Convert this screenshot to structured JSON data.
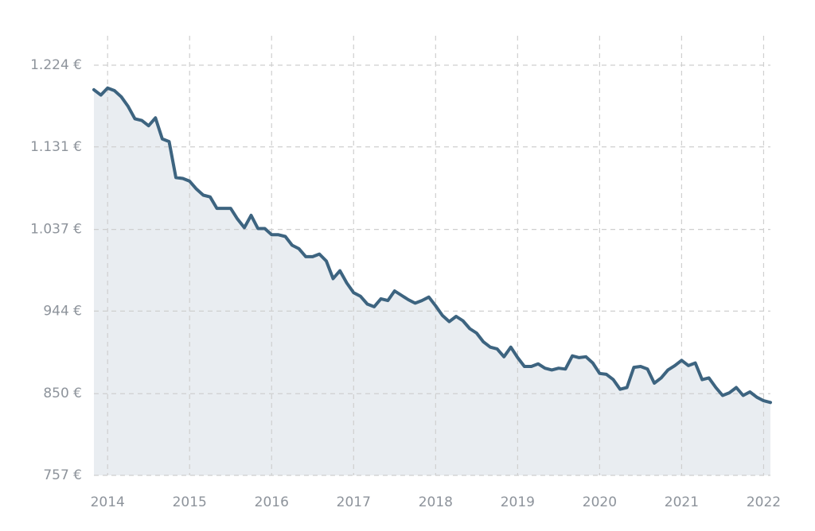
{
  "chart_data": {
    "type": "area",
    "x": [
      2013.833,
      2013.917,
      2014,
      2014.083,
      2014.167,
      2014.25,
      2014.333,
      2014.417,
      2014.5,
      2014.583,
      2014.667,
      2014.75,
      2014.833,
      2014.917,
      2015,
      2015.083,
      2015.167,
      2015.25,
      2015.333,
      2015.417,
      2015.5,
      2015.583,
      2015.667,
      2015.75,
      2015.833,
      2015.917,
      2016,
      2016.083,
      2016.167,
      2016.25,
      2016.333,
      2016.417,
      2016.5,
      2016.583,
      2016.667,
      2016.75,
      2016.833,
      2016.917,
      2017,
      2017.083,
      2017.167,
      2017.25,
      2017.333,
      2017.417,
      2017.5,
      2017.583,
      2017.667,
      2017.75,
      2017.833,
      2017.917,
      2018,
      2018.083,
      2018.167,
      2018.25,
      2018.333,
      2018.417,
      2018.5,
      2018.583,
      2018.667,
      2018.75,
      2018.833,
      2018.917,
      2019,
      2019.083,
      2019.167,
      2019.25,
      2019.333,
      2019.417,
      2019.5,
      2019.583,
      2019.667,
      2019.75,
      2019.833,
      2019.917,
      2020,
      2020.083,
      2020.167,
      2020.25,
      2020.333,
      2020.417,
      2020.5,
      2020.583,
      2020.667,
      2020.75,
      2020.833,
      2020.917,
      2021,
      2021.083,
      2021.167,
      2021.25,
      2021.333,
      2021.417,
      2021.5,
      2021.583,
      2021.667,
      2021.75,
      2021.833,
      2021.917,
      2022,
      2022.083
    ],
    "values": [
      1196,
      1190,
      1198,
      1195,
      1188,
      1177,
      1163,
      1161,
      1155,
      1164,
      1140,
      1137,
      1096,
      1095,
      1092,
      1083,
      1076,
      1074,
      1061,
      1061,
      1061,
      1049,
      1039,
      1053,
      1038,
      1038,
      1031,
      1031,
      1029,
      1019,
      1015,
      1006,
      1006,
      1009,
      1001,
      981,
      990,
      976,
      965,
      961,
      952,
      949,
      958,
      956,
      967,
      962,
      957,
      953,
      956,
      960,
      950,
      939,
      932,
      938,
      933,
      924,
      919,
      909,
      903,
      901,
      892,
      903,
      891,
      881,
      881,
      884,
      879,
      877,
      879,
      878,
      893,
      891,
      892,
      885,
      873,
      872,
      866,
      855,
      857,
      880,
      881,
      878,
      862,
      868,
      877,
      882,
      888,
      882,
      885,
      866,
      868,
      857,
      848,
      851,
      857,
      848,
      852,
      846,
      842,
      840
    ],
    "color": "#3d6480",
    "fill": "#e9edf1",
    "xlim": [
      2013.833,
      2022.083
    ],
    "xticks": [
      2014,
      2015,
      2016,
      2017,
      2018,
      2019,
      2020,
      2021,
      2022
    ],
    "ylim": [
      757,
      1224
    ],
    "yticks": [
      {
        "value": 757,
        "label": "757 €"
      },
      {
        "value": 850,
        "label": "850 €"
      },
      {
        "value": 944,
        "label": "944 €"
      },
      {
        "value": 1037,
        "label": "1.037 €"
      },
      {
        "value": 1131,
        "label": "1.131 €"
      },
      {
        "value": 1224,
        "label": "1.224 €"
      }
    ],
    "grid": true
  }
}
